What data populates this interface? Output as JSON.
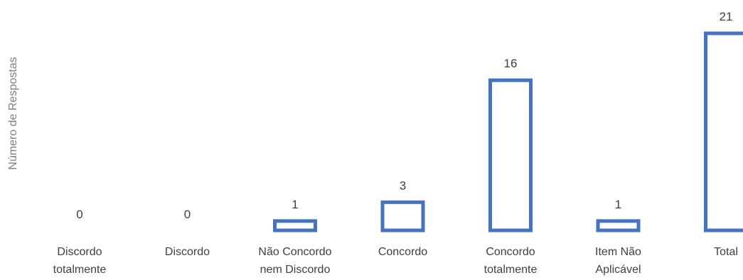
{
  "chart_data": {
    "type": "bar",
    "ylabel": "Número de Respostas",
    "categories": [
      [
        "Discordo",
        "totalmente"
      ],
      [
        "Discordo"
      ],
      [
        "Não Concordo",
        "nem Discordo"
      ],
      [
        "Concordo"
      ],
      [
        "Concordo",
        "totalmente"
      ],
      [
        "Item Não",
        "Aplicável"
      ],
      [
        "Total"
      ]
    ],
    "values": [
      0,
      0,
      1,
      3,
      16,
      1,
      21
    ],
    "ylim": [
      0,
      21
    ],
    "grid": false,
    "legend": "none",
    "bar_style": "outline",
    "colors": {
      "bar_stroke": "#4472C4",
      "label_text": "#404040",
      "axis_label_text": "#7f7f7f"
    }
  }
}
